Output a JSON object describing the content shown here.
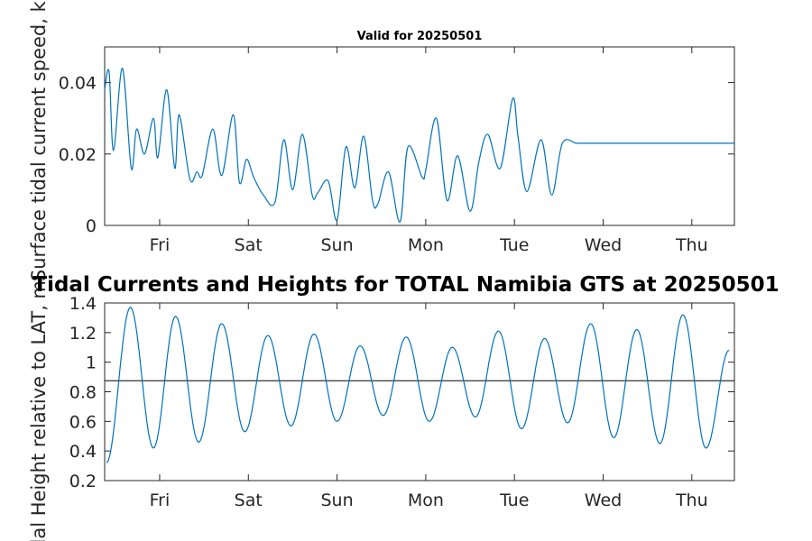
{
  "chart_data": [
    {
      "type": "line",
      "title": "Valid for 20250501",
      "xlabel": "",
      "ylabel": "Surface tidal current speed, kn",
      "ylim": [
        0,
        0.05
      ],
      "yticks": [
        0,
        0.02,
        0.04
      ],
      "ytick_labels": [
        "0",
        "0.02",
        "0.04"
      ],
      "xlim": [
        0,
        7.1
      ],
      "xticks": [
        0.62,
        1.62,
        2.62,
        3.62,
        4.62,
        5.62,
        6.62
      ],
      "xtick_labels": [
        "Fri",
        "Sat",
        "Sun",
        "Mon",
        "Tue",
        "Wed",
        "Thu"
      ],
      "grid": false,
      "line_color": "#0072BD",
      "series": [
        {
          "x": [
            0.0,
            0.05,
            0.1,
            0.2,
            0.3,
            0.36,
            0.45,
            0.55,
            0.6,
            0.7,
            0.79,
            0.84,
            0.96,
            1.04,
            1.1,
            1.22,
            1.32,
            1.45,
            1.52,
            1.6,
            1.68,
            1.79,
            1.92,
            2.02,
            2.12,
            2.23,
            2.34,
            2.4,
            2.52,
            2.62,
            2.72,
            2.82,
            2.92,
            3.02,
            3.08,
            3.2,
            3.33,
            3.42,
            3.58,
            3.62,
            3.74,
            3.86,
            3.98,
            4.12,
            4.22,
            4.32,
            4.46,
            4.6,
            4.66,
            4.76,
            4.92,
            5.04,
            5.16,
            5.32,
            5.45,
            5.56,
            5.66,
            5.8,
            5.92,
            6.06,
            6.18,
            6.3,
            6.4,
            6.54,
            6.62,
            6.72,
            6.84,
            6.96,
            7.1
          ],
          "y": [
            0.038,
            0.043,
            0.021,
            0.044,
            0.016,
            0.027,
            0.02,
            0.03,
            0.019,
            0.038,
            0.016,
            0.031,
            0.013,
            0.015,
            0.014,
            0.027,
            0.014,
            0.031,
            0.012,
            0.0185,
            0.0135,
            0.0085,
            0.0065,
            0.024,
            0.01,
            0.0255,
            0.0085,
            0.009,
            0.0125,
            0.0015,
            0.022,
            0.0105,
            0.025,
            0.007,
            0.006,
            0.015,
            0.001,
            0.022,
            0.0135,
            0.0155,
            0.03,
            0.007,
            0.0195,
            0.004,
            0.018,
            0.0255,
            0.016,
            0.0355,
            0.025,
            0.0095,
            0.024,
            0.0085,
            0.023,
            0.023,
            0.023,
            0.023,
            0.023,
            0.023,
            0.023,
            0.023,
            0.023,
            0.023,
            0.023,
            0.023,
            0.023,
            0.023,
            0.023,
            0.023,
            0.023
          ]
        }
      ]
    },
    {
      "type": "line",
      "title": "Tidal Currents and Heights for TOTAL Namibia GTS at 20250501",
      "xlabel": "",
      "ylabel": "Tidal Height relative to LAT, m",
      "ylim": [
        0.2,
        1.4
      ],
      "yticks": [
        0.2,
        0.4,
        0.6,
        0.8,
        1.0,
        1.2,
        1.4
      ],
      "ytick_labels": [
        "0.2",
        "0.4",
        "0.6",
        "0.8",
        "1",
        "1.2",
        "1.4"
      ],
      "xlim": [
        0,
        7.1
      ],
      "xticks": [
        0.62,
        1.62,
        2.62,
        3.62,
        4.62,
        5.62,
        6.62
      ],
      "xtick_labels": [
        "Fri",
        "Sat",
        "Sun",
        "Mon",
        "Tue",
        "Wed",
        "Thu"
      ],
      "grid": false,
      "line_color": "#0072BD",
      "reference_line": {
        "y": 0.875,
        "color": "#000000"
      },
      "series": [
        {
          "x": [
            0.02,
            0.29,
            0.55,
            0.8,
            1.06,
            1.32,
            1.58,
            1.84,
            2.1,
            2.36,
            2.62,
            2.88,
            3.14,
            3.4,
            3.66,
            3.92,
            4.18,
            4.44,
            4.7,
            4.96,
            5.22,
            5.48,
            5.74,
            6.0,
            6.26,
            6.52,
            6.78,
            7.04
          ],
          "y": [
            0.32,
            1.37,
            0.42,
            1.31,
            0.46,
            1.26,
            0.53,
            1.18,
            0.57,
            1.19,
            0.6,
            1.11,
            0.64,
            1.17,
            0.6,
            1.1,
            0.63,
            1.21,
            0.55,
            1.16,
            0.59,
            1.26,
            0.49,
            1.22,
            0.45,
            1.32,
            0.42,
            1.08
          ]
        }
      ]
    }
  ]
}
